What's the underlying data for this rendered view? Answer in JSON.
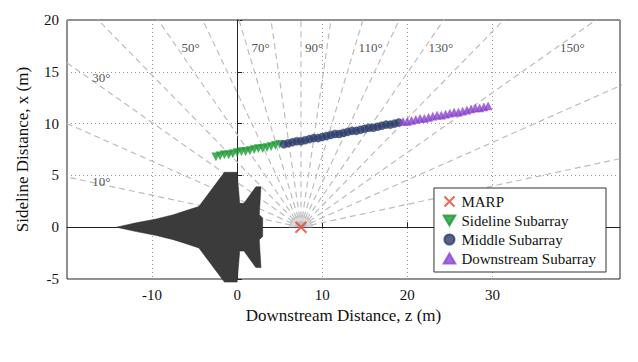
{
  "chart_data": {
    "type": "scatter",
    "xlabel": "Downstream Distance, z (m)",
    "ylabel": "Sideline Distance, x (m)",
    "xlim": [
      -20,
      45
    ],
    "xticks": [
      -10,
      0,
      10,
      20,
      30
    ],
    "ylim": [
      -5,
      20
    ],
    "yticks": [
      -5,
      0,
      5,
      10,
      15,
      20
    ],
    "grid": true,
    "legend": "lower right",
    "series": [
      {
        "name": "MARP",
        "color": "#e8412f",
        "marker": "x",
        "x": [
          7.5
        ],
        "values": [
          0
        ]
      },
      {
        "name": "Sideline Subarray",
        "color": "#1e9a35",
        "marker": "triangle-down",
        "x": [
          -2.5,
          -2.0,
          -1.5,
          -1.0,
          -0.5,
          0.0,
          0.5,
          1.0,
          1.5,
          2.0,
          2.5,
          3.0,
          3.5,
          4.0,
          4.5,
          5.0
        ],
        "values": [
          6.8,
          6.9,
          7.0,
          7.0,
          7.1,
          7.2,
          7.3,
          7.3,
          7.4,
          7.5,
          7.6,
          7.6,
          7.7,
          7.8,
          7.9,
          8.0
        ]
      },
      {
        "name": "Middle Subarray",
        "color": "#2d3d6b",
        "marker": "circle",
        "x": [
          5.5,
          6.0,
          6.5,
          7.0,
          7.5,
          8.0,
          8.5,
          9.0,
          9.5,
          10.0,
          10.5,
          11.0,
          11.5,
          12.0,
          12.5,
          13.0,
          13.5,
          14.0,
          14.5,
          15.0,
          15.5,
          16.0,
          16.5,
          17.0,
          17.5,
          18.0,
          18.5,
          19.0
        ],
        "values": [
          8.0,
          8.1,
          8.2,
          8.3,
          8.3,
          8.4,
          8.5,
          8.6,
          8.6,
          8.7,
          8.8,
          8.9,
          9.0,
          9.0,
          9.1,
          9.2,
          9.3,
          9.3,
          9.4,
          9.5,
          9.6,
          9.6,
          9.7,
          9.8,
          9.9,
          9.9,
          10.0,
          10.1
        ]
      },
      {
        "name": "Downstream Subarray",
        "color": "#8b45cf",
        "marker": "triangle-up",
        "x": [
          19.5,
          20.0,
          20.5,
          21.0,
          21.5,
          22.0,
          22.5,
          23.0,
          23.5,
          24.0,
          24.5,
          25.0,
          25.5,
          26.0,
          26.5,
          27.0,
          27.5,
          28.0,
          28.5,
          29.0,
          29.5
        ],
        "values": [
          10.2,
          10.2,
          10.3,
          10.4,
          10.5,
          10.5,
          10.6,
          10.7,
          10.8,
          10.8,
          10.9,
          11.0,
          11.1,
          11.1,
          11.2,
          11.3,
          11.4,
          11.5,
          11.5,
          11.6,
          11.7
        ]
      }
    ],
    "radial_lines": {
      "origin": [
        7.5,
        0
      ],
      "line_style": "dashed",
      "angles": [
        10,
        20,
        30,
        40,
        50,
        60,
        70,
        80,
        90,
        100,
        110,
        120,
        130,
        140,
        150,
        160,
        170
      ],
      "angle_labels": [
        {
          "value": 10,
          "label": "10°"
        },
        {
          "value": 30,
          "label": "30°"
        },
        {
          "value": 50,
          "label": "50°"
        },
        {
          "value": 70,
          "label": "70°"
        },
        {
          "value": 90,
          "label": "90°"
        },
        {
          "value": 110,
          "label": "110°"
        },
        {
          "value": 130,
          "label": "130°"
        },
        {
          "value": 150,
          "label": "150°"
        }
      ]
    }
  }
}
